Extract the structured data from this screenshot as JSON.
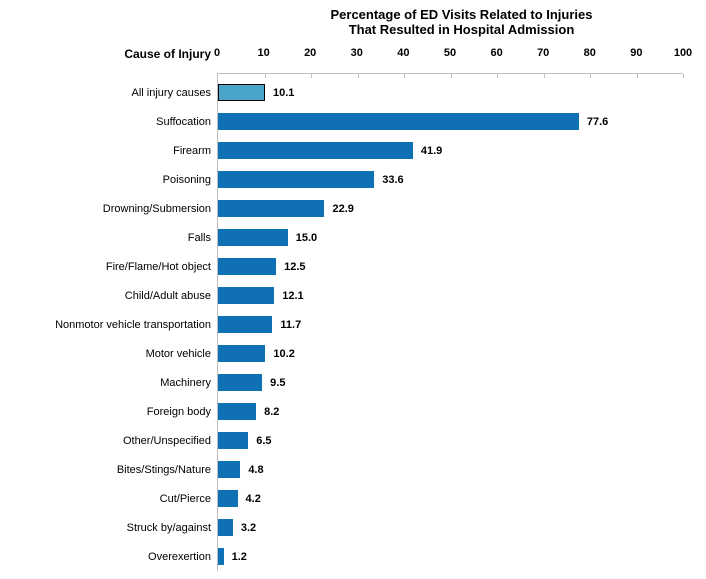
{
  "chart_data": {
    "type": "bar",
    "orientation": "horizontal",
    "title": "Percentage of ED Visits Related to Injuries That Resulted in Hospital Admission",
    "title_line1": "Percentage of ED Visits Related to Injuries",
    "title_line2": "That Resulted in Hospital Admission",
    "ylabel": "Cause of Injury",
    "xlabel": "",
    "xlim": [
      0,
      100
    ],
    "grid": false,
    "legend": false,
    "tick_labels": [
      "0",
      "10",
      "20",
      "30",
      "40",
      "50",
      "60",
      "70",
      "80",
      "90",
      "100"
    ],
    "categories": [
      "All injury causes",
      "Suffocation",
      "Firearm",
      "Poisoning",
      "Drowning/Submersion",
      "Falls",
      "Fire/Flame/Hot object",
      "Child/Adult abuse",
      "Nonmotor vehicle transportation",
      "Motor vehicle",
      "Machinery",
      "Foreign body",
      "Other/Unspecified",
      "Bites/Stings/Nature",
      "Cut/Pierce",
      "Struck by/against",
      "Overexertion"
    ],
    "values": [
      10.1,
      77.6,
      41.9,
      33.6,
      22.9,
      15.0,
      12.5,
      12.1,
      11.7,
      10.2,
      9.5,
      8.2,
      6.5,
      4.8,
      4.2,
      3.2,
      1.2
    ],
    "value_labels": [
      "10.1",
      "77.6",
      "41.9",
      "33.6",
      "22.9",
      "15.0",
      "12.5",
      "12.1",
      "11.7",
      "10.2",
      "9.5",
      "8.2",
      "6.5",
      "4.8",
      "4.2",
      "3.2",
      "1.2"
    ],
    "highlight_index": 0,
    "colors": {
      "bar": "#1070B4",
      "highlight_bar": "#4AA5C8",
      "highlight_border": "#000000",
      "axis": "#BFBFBF",
      "text": "#000000"
    }
  }
}
